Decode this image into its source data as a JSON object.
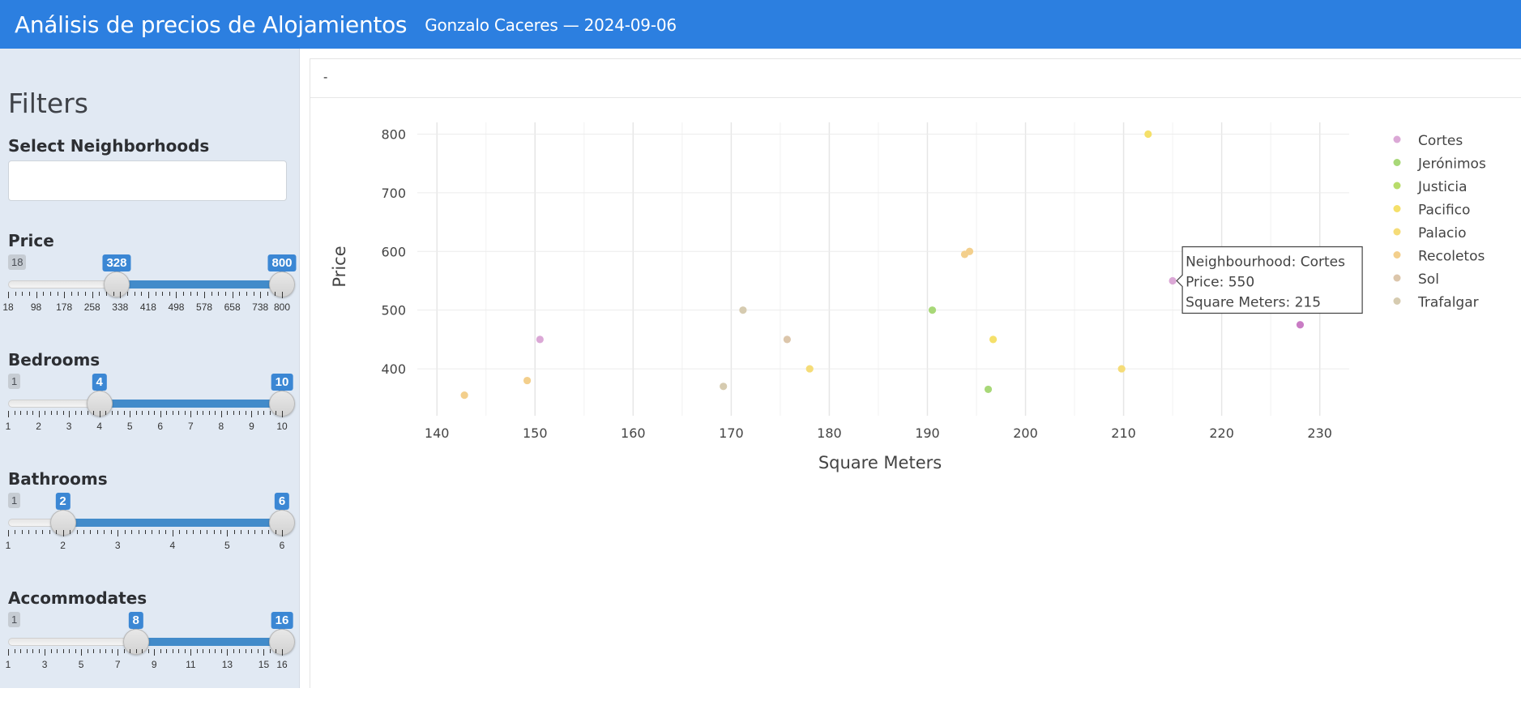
{
  "header": {
    "title": "Análisis de precios de Alojamientos",
    "subtitle": "Gonzalo Caceres — 2024-09-06",
    "color": "#2c7fe0"
  },
  "sidebar": {
    "title": "Filters",
    "neighborhoods": {
      "label": "Select Neighborhoods",
      "value": ""
    },
    "sliders": [
      {
        "label": "Price",
        "min": 18,
        "max": 800,
        "low": 328,
        "high": 800,
        "tick_labels": [
          "18",
          "98",
          "178",
          "258",
          "338",
          "418",
          "498",
          "578",
          "658",
          "738",
          "800"
        ]
      },
      {
        "label": "Bedrooms",
        "min": 1,
        "max": 10,
        "low": 4,
        "high": 10,
        "tick_labels": [
          "1",
          "2",
          "3",
          "4",
          "5",
          "6",
          "7",
          "8",
          "9",
          "10"
        ]
      },
      {
        "label": "Bathrooms",
        "min": 1,
        "max": 6,
        "low": 2,
        "high": 6,
        "tick_labels": [
          "1",
          "2",
          "3",
          "4",
          "5",
          "6"
        ]
      },
      {
        "label": "Accommodates",
        "min": 1,
        "max": 16,
        "low": 8,
        "high": 16,
        "tick_labels": [
          "1",
          "3",
          "5",
          "7",
          "9",
          "11",
          "13",
          "15",
          "16"
        ]
      }
    ]
  },
  "panel": {
    "heading": "-"
  },
  "chart_data": {
    "type": "scatter",
    "xlabel": "Square Meters",
    "ylabel": "Price",
    "xlim": [
      138,
      233
    ],
    "ylim": [
      320,
      820
    ],
    "x_ticks": [
      140,
      150,
      160,
      170,
      180,
      190,
      200,
      210,
      220,
      230
    ],
    "y_ticks": [
      400,
      500,
      600,
      700,
      800
    ],
    "grid": true,
    "legend_position": "right",
    "series": [
      {
        "name": "Cortes",
        "color": "#dba8d6",
        "points": [
          [
            150.5,
            450
          ],
          [
            215,
            550
          ],
          [
            228,
            475
          ]
        ]
      },
      {
        "name": "Jerónimos",
        "color": "#a8d878",
        "points": [
          [
            190.5,
            500
          ],
          [
            196.2,
            365
          ]
        ]
      },
      {
        "name": "Justicia",
        "color": "#b8dc6a",
        "points": []
      },
      {
        "name": "Pacifico",
        "color": "#f5e06a",
        "points": [
          [
            212.5,
            800
          ],
          [
            196.7,
            450
          ]
        ]
      },
      {
        "name": "Palacio",
        "color": "#f5dc78",
        "points": [
          [
            178,
            400
          ],
          [
            209.8,
            400
          ]
        ]
      },
      {
        "name": "Recoletos",
        "color": "#f3cf8c",
        "points": [
          [
            142.8,
            355
          ],
          [
            149.2,
            380
          ],
          [
            193.8,
            595
          ],
          [
            194.3,
            600
          ]
        ]
      },
      {
        "name": "Sol",
        "color": "#dcc6ab",
        "points": [
          [
            175.7,
            450
          ]
        ]
      },
      {
        "name": "Trafalgar",
        "color": "#d6cbb0",
        "points": [
          [
            169.2,
            370
          ],
          [
            171.2,
            500
          ]
        ]
      }
    ],
    "tooltip": {
      "neighbourhood": "Neighbourhood:  Cortes",
      "price": "Price:  550",
      "square_meters": "Square Meters:  215"
    }
  }
}
